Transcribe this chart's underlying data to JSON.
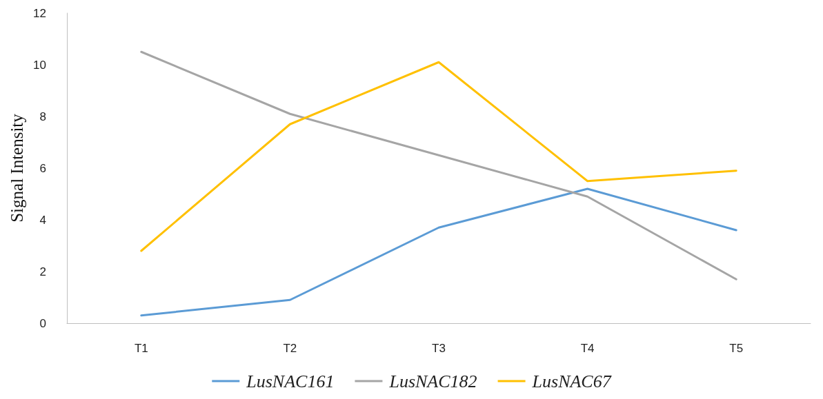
{
  "chart_data": {
    "type": "line",
    "ylabel": "Signal Intensity",
    "categories": [
      "T1",
      "T2",
      "T3",
      "T4",
      "T5"
    ],
    "series": [
      {
        "name": "LusNAC161",
        "color": "#5b9bd5",
        "values": [
          0.3,
          0.9,
          3.7,
          5.2,
          3.6
        ]
      },
      {
        "name": "LusNAC182",
        "color": "#a5a5a5",
        "values": [
          10.5,
          8.1,
          6.5,
          4.9,
          1.7
        ]
      },
      {
        "name": "LusNAC67",
        "color": "#ffc000",
        "values": [
          2.8,
          7.7,
          10.1,
          5.5,
          5.9
        ]
      }
    ],
    "ylim": [
      0,
      12
    ],
    "yticks": [
      0,
      2,
      4,
      6,
      8,
      10,
      12
    ],
    "grid": false,
    "legend": "bottom",
    "marker": "none",
    "line_style": "solid"
  }
}
